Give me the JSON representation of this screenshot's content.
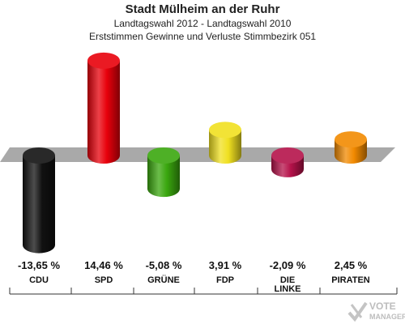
{
  "header": {
    "title": "Stadt Mülheim an der Ruhr",
    "subtitle": "Landtagswahl 2012 - Landtagswahl 2010",
    "subtitle2": "Erststimmen Gewinne und Verluste Stimmbezirk 051"
  },
  "watermark": {
    "line1": "VOTE",
    "line2": "MANAGER"
  },
  "chart_data": {
    "type": "bar",
    "title": "Stadt Mülheim an der Ruhr",
    "subtitle": "Landtagswahl 2012 - Landtagswahl 2010 · Erststimmen Gewinne und Verluste Stimmbezirk 051",
    "categories": [
      "CDU",
      "SPD",
      "GRÜNE",
      "FDP",
      "DIE LINKE",
      "PIRATEN"
    ],
    "values": [
      -13.65,
      14.46,
      -5.08,
      3.91,
      -2.09,
      2.45
    ],
    "value_labels": [
      "-13,65 %",
      "14,46 %",
      "-5,08 %",
      "3,91 %",
      "-2,09 %",
      "2,45 %"
    ],
    "colors": [
      "#111111",
      "#e8000b",
      "#3aa70e",
      "#f0e020",
      "#b5124a",
      "#f28a00"
    ],
    "ylim": [
      -14.5,
      15
    ],
    "grid": false,
    "legend": "none"
  }
}
